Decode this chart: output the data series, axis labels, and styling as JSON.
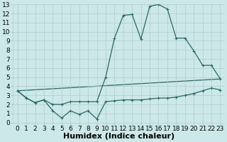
{
  "xlabel": "Humidex (Indice chaleur)",
  "xlim": [
    -0.5,
    23.5
  ],
  "ylim": [
    0,
    13
  ],
  "xticks": [
    0,
    1,
    2,
    3,
    4,
    5,
    6,
    7,
    8,
    9,
    10,
    11,
    12,
    13,
    14,
    15,
    16,
    17,
    18,
    19,
    20,
    21,
    22,
    23
  ],
  "yticks": [
    0,
    1,
    2,
    3,
    4,
    5,
    6,
    7,
    8,
    9,
    10,
    11,
    12,
    13
  ],
  "background_color": "#cce8e8",
  "grid_color": "#b0cccc",
  "line_color": "#2a6868",
  "line1_x": [
    0,
    1,
    2,
    3,
    4,
    5,
    6,
    7,
    8,
    9,
    10,
    11,
    12,
    13,
    14,
    15,
    16,
    17,
    18,
    19,
    20,
    21,
    22,
    23
  ],
  "line1_y": [
    3.5,
    2.7,
    2.2,
    2.5,
    1.3,
    0.5,
    1.3,
    0.9,
    1.3,
    0.4,
    2.3,
    2.4,
    2.5,
    2.5,
    2.5,
    2.6,
    2.7,
    2.7,
    2.8,
    3.0,
    3.2,
    3.5,
    3.8,
    3.6
  ],
  "line2_x": [
    0,
    1,
    2,
    3,
    4,
    5,
    6,
    7,
    8,
    9,
    10,
    11,
    12,
    13,
    14,
    15,
    16,
    17,
    18,
    19,
    20,
    21,
    22,
    23
  ],
  "line2_y": [
    3.5,
    2.7,
    2.2,
    2.5,
    2.0,
    2.0,
    2.3,
    2.3,
    2.3,
    2.3,
    5.0,
    9.3,
    11.8,
    11.9,
    9.2,
    12.8,
    13.0,
    12.5,
    9.3,
    9.3,
    7.9,
    6.3,
    6.3,
    4.8
  ],
  "line3_x": [
    0,
    23
  ],
  "line3_y": [
    3.5,
    4.8
  ],
  "xlabel_fontsize": 8,
  "tick_fontsize": 6.5
}
